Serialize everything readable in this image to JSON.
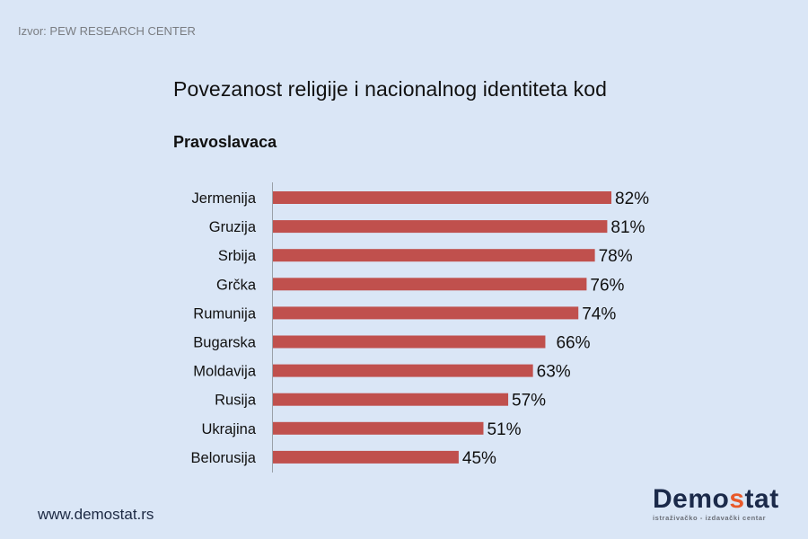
{
  "source": "Izvor: PEW RESEARCH CENTER",
  "footer": {
    "url": "www.demostat.rs",
    "logo_prefix": "Demo",
    "logo_accent": "s",
    "logo_suffix": "tat",
    "logo_tagline": "istraživačko - izdavački centar"
  },
  "colors": {
    "background": "#dae6f6",
    "bar": "#c0504d",
    "logo_dark": "#1b2a4a",
    "logo_accent": "#e8592a"
  },
  "chart_data": {
    "type": "bar",
    "orientation": "horizontal",
    "title": "Povezanost religije i nacionalnog identiteta kod",
    "subtitle": "Pravoslavaca",
    "xlabel": "",
    "ylabel": "",
    "xlim": [
      0,
      100
    ],
    "grid": false,
    "unit": "%",
    "categories": [
      "Jermenija",
      "Gruzija",
      "Srbija",
      "Grčka",
      "Rumunija",
      "Bugarska",
      "Moldavija",
      "Rusija",
      "Ukrajina",
      "Belorusija"
    ],
    "values": [
      82,
      81,
      78,
      76,
      74,
      66,
      63,
      57,
      51,
      45
    ],
    "value_labels": [
      "82%",
      "81%",
      "78%",
      "76%",
      "74%",
      "66%",
      "63%",
      "57%",
      "51%",
      "45%"
    ]
  }
}
